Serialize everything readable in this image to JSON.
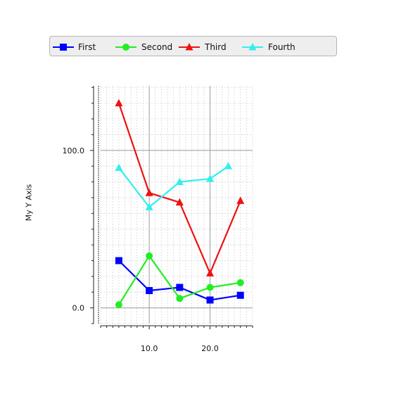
{
  "chart_data": {
    "type": "line",
    "title": "",
    "xlabel": "",
    "ylabel": "My Y Axis",
    "xlim": [
      2,
      27
    ],
    "ylim": [
      -10,
      141
    ],
    "x_ticks": [
      "10.0",
      "20.0"
    ],
    "y_ticks": [
      "0.0",
      "100.0"
    ],
    "grid": true,
    "legend_position": "top",
    "series": [
      {
        "name": "First",
        "color": "#0000ff",
        "marker": "square",
        "x": [
          5,
          10,
          15,
          20,
          25
        ],
        "y": [
          30,
          11,
          13,
          5,
          8
        ]
      },
      {
        "name": "Second",
        "color": "#22ee22",
        "marker": "circle",
        "x": [
          5,
          10,
          15,
          20,
          25
        ],
        "y": [
          2,
          33,
          6,
          13,
          16
        ]
      },
      {
        "name": "Third",
        "color": "#ee1111",
        "marker": "triangle",
        "x": [
          5,
          10,
          15,
          20,
          25
        ],
        "y": [
          130,
          73,
          67,
          22,
          68
        ]
      },
      {
        "name": "Fourth",
        "color": "#33eeee",
        "marker": "triangle",
        "x": [
          5,
          10,
          15,
          20,
          23
        ],
        "y": [
          89,
          64,
          80,
          82,
          90
        ]
      }
    ]
  }
}
